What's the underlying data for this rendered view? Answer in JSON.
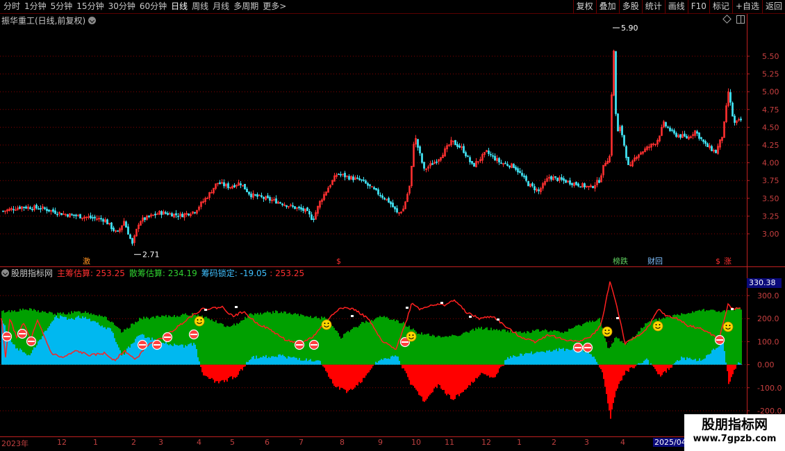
{
  "toolbar": {
    "periods": [
      "分时",
      "1分钟",
      "5分钟",
      "15分钟",
      "30分钟",
      "60分钟",
      "日线",
      "周线",
      "月线",
      "多周期",
      "更多>"
    ],
    "active_period": "日线",
    "buttons": [
      "复权",
      "叠加",
      "多股",
      "统计",
      "画线",
      "F10",
      "标记",
      "+自选",
      "返回"
    ]
  },
  "main_panel": {
    "title": "振华重工(日线,前复权)",
    "high_marker": "5.90",
    "low_marker": "2.71",
    "y_axis_labels": [
      "5.50",
      "5.25",
      "5.00",
      "4.75",
      "4.50",
      "4.25",
      "4.00",
      "3.75",
      "3.50",
      "3.25",
      "3.00"
    ],
    "event_markers": [
      {
        "text": "激",
        "color": "#ff9020"
      },
      {
        "text": "$",
        "color": "#ff3030"
      },
      {
        "text": "榜跌",
        "color": "#60d060"
      },
      {
        "text": "财回",
        "color": "#80c0ff"
      },
      {
        "text": "$",
        "color": "#ff3030"
      },
      {
        "text": "涨",
        "color": "#ff3030"
      }
    ]
  },
  "indicator_panel": {
    "name": "股朋指标网",
    "items": [
      {
        "label": "主筹估算: 253.25",
        "color": "#ff3030"
      },
      {
        "label": "散筹估算: 234.19",
        "color": "#30d030"
      },
      {
        "label": "筹码锁定: -19.05",
        "color": "#40c0ff"
      },
      {
        "label": ": 253.25",
        "color": "#ff3030"
      }
    ],
    "top_value": "330.38",
    "y_axis_labels": [
      "300.0",
      "200.0",
      "100.0",
      "0.00",
      "-100.0",
      "-200.0"
    ]
  },
  "date_axis": {
    "labels": [
      "2023年",
      "12",
      "1",
      "2",
      "3",
      "4",
      "5",
      "6",
      "7",
      "8",
      "9",
      "10",
      "11",
      "12",
      "1",
      "2",
      "3",
      "4",
      "2025/04"
    ]
  },
  "watermark": {
    "title": "股朋指标网",
    "url": "www.7gpzb.com"
  },
  "colors": {
    "up": "#ff3030",
    "down": "#40e0f0",
    "grid": "#8a0000",
    "axis": "#c02020",
    "green_area": "#00a000",
    "cyan_area": "#00b8f0",
    "red_area": "#ff0000",
    "main_line": "#ff2020"
  }
}
